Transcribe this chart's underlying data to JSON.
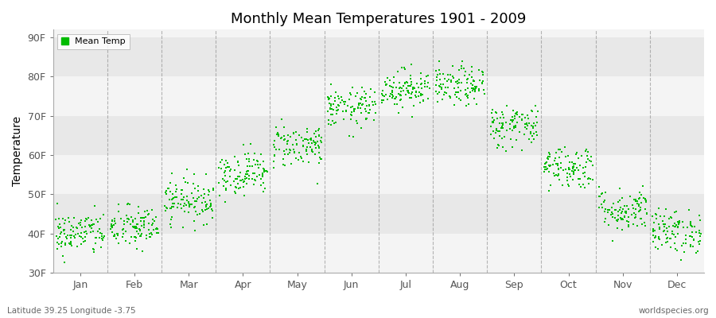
{
  "title": "Monthly Mean Temperatures 1901 - 2009",
  "ylabel": "Temperature",
  "yticks": [
    30,
    40,
    50,
    60,
    70,
    80,
    90
  ],
  "ytick_labels": [
    "30F",
    "40F",
    "50F",
    "60F",
    "70F",
    "80F",
    "90F"
  ],
  "ylim": [
    30,
    92
  ],
  "months": [
    "Jan",
    "Feb",
    "Mar",
    "Apr",
    "May",
    "Jun",
    "Jul",
    "Aug",
    "Sep",
    "Oct",
    "Nov",
    "Dec"
  ],
  "dot_color": "#00bb00",
  "bg_light": "#ebebeb",
  "bg_dark": "#e0e0e0",
  "legend_label": "Mean Temp",
  "bottom_left_text": "Latitude 39.25 Longitude -3.75",
  "bottom_right_text": "worldspecies.org",
  "n_years": 109,
  "monthly_means_F": [
    40.0,
    41.5,
    48.5,
    55.5,
    62.5,
    72.0,
    77.0,
    77.5,
    67.5,
    57.0,
    46.0,
    40.5
  ],
  "monthly_stds_F": [
    2.8,
    2.8,
    2.8,
    2.8,
    2.8,
    2.5,
    2.5,
    2.5,
    2.8,
    2.8,
    2.8,
    2.8
  ],
  "seed": 42,
  "dot_size": 4,
  "vline_color": "#888888",
  "vline_alpha": 0.6,
  "stripe_colors": [
    "#f4f4f4",
    "#e8e8e8"
  ]
}
